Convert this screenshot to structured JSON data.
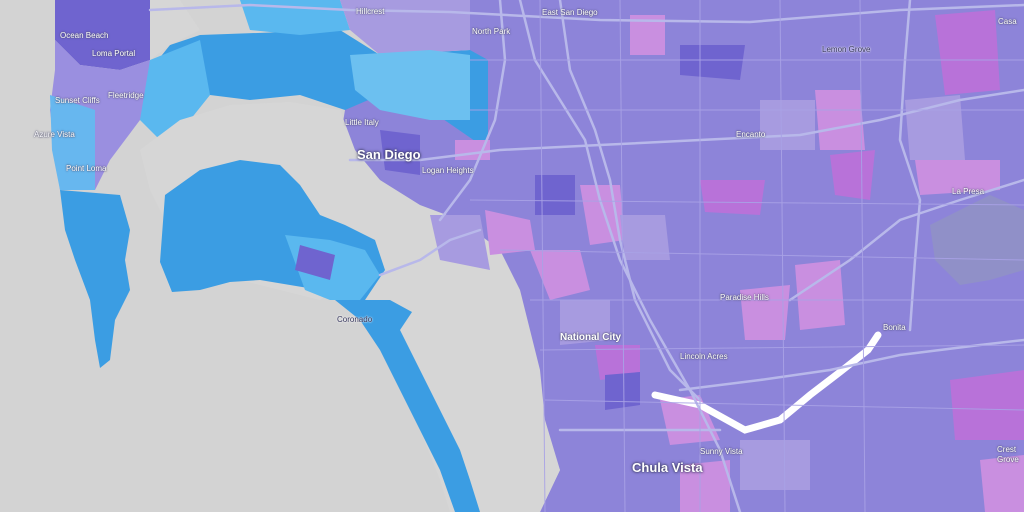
{
  "map": {
    "base_colors": {
      "land": "#d3d3d3",
      "water": "#d6d6d6",
      "road": "#b8b8e8",
      "coast_blue": "#3b9de3",
      "light_blue": "#5ab8ef",
      "medium_purple": "#8d84d9",
      "light_purple": "#a79be0",
      "dark_purple": "#6f64cf",
      "magenta": "#b872d9",
      "pink": "#c98fe0"
    },
    "labels": [
      {
        "text": "Hillcrest",
        "class": ""
      },
      {
        "text": "East San Diego",
        "class": ""
      },
      {
        "text": "North Park",
        "class": ""
      },
      {
        "text": "Ocean Beach",
        "class": ""
      },
      {
        "text": "Loma Portal",
        "class": ""
      },
      {
        "text": "Lemon Grove",
        "class": "dark"
      },
      {
        "text": "Sunset Cliffs",
        "class": ""
      },
      {
        "text": "Fleetridge",
        "class": ""
      },
      {
        "text": "Little Italy",
        "class": ""
      },
      {
        "text": "Azure Vista",
        "class": ""
      },
      {
        "text": "San Diego",
        "class": "city"
      },
      {
        "text": "Encanto",
        "class": ""
      },
      {
        "text": "Logan Heights",
        "class": ""
      },
      {
        "text": "Point Loma",
        "class": ""
      },
      {
        "text": "La Presa",
        "class": ""
      },
      {
        "text": "Paradise Hills",
        "class": ""
      },
      {
        "text": "Coronado",
        "class": "dark"
      },
      {
        "text": "Bonita",
        "class": ""
      },
      {
        "text": "National City",
        "class": "mid"
      },
      {
        "text": "Lincoln Acres",
        "class": ""
      },
      {
        "text": "Sunny Vista",
        "class": ""
      },
      {
        "text": "Chula Vista",
        "class": "city"
      },
      {
        "text": "Casa",
        "class": ""
      },
      {
        "text": "Crest",
        "class": ""
      },
      {
        "text": "Grove",
        "class": ""
      }
    ]
  }
}
